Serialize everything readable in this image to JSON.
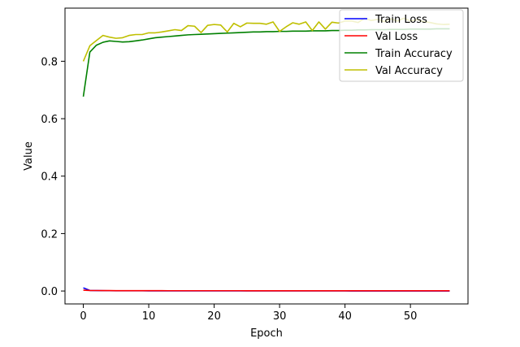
{
  "chart_data": {
    "type": "line",
    "xlabel": "Epoch",
    "ylabel": "Value",
    "xlim": [
      -2.8,
      58.8
    ],
    "ylim": [
      -0.045,
      0.985
    ],
    "xticks": [
      0,
      10,
      20,
      30,
      40,
      50
    ],
    "yticks": [
      0.0,
      0.2,
      0.4,
      0.6,
      0.8
    ],
    "ytick_labels": [
      "0.0",
      "0.2",
      "0.4",
      "0.6",
      "0.8"
    ],
    "grid": false,
    "legend_position": "top-right",
    "series": [
      {
        "name": "Train Loss",
        "color": "#0000ff",
        "x": [
          0,
          1,
          2,
          3,
          4,
          5,
          6,
          7,
          8,
          9,
          10,
          11,
          12,
          13,
          14,
          15,
          16,
          17,
          18,
          19,
          20,
          21,
          22,
          23,
          24,
          25,
          26,
          27,
          28,
          29,
          30,
          31,
          32,
          33,
          34,
          35,
          36,
          37,
          38,
          39,
          40,
          41,
          42,
          43,
          44,
          45,
          46,
          47,
          48,
          49,
          50,
          51,
          52,
          53,
          54,
          55,
          56
        ],
        "values": [
          0.011,
          0.002,
          0.0015,
          0.0012,
          0.001,
          0.0009,
          0.0008,
          0.0008,
          0.0007,
          0.0007,
          0.0006,
          0.0006,
          0.0006,
          0.0005,
          0.0005,
          0.0005,
          0.0005,
          0.0005,
          0.0004,
          0.0004,
          0.0004,
          0.0004,
          0.0004,
          0.0004,
          0.0004,
          0.0003,
          0.0003,
          0.0003,
          0.0003,
          0.0003,
          0.0003,
          0.0003,
          0.0003,
          0.0003,
          0.0003,
          0.0003,
          0.0003,
          0.0003,
          0.0003,
          0.0003,
          0.0003,
          0.0002,
          0.0002,
          0.0002,
          0.0002,
          0.0002,
          0.0002,
          0.0002,
          0.0002,
          0.0002,
          0.0002,
          0.0002,
          0.0002,
          0.0002,
          0.0002,
          0.0002,
          0.0002
        ]
      },
      {
        "name": "Val Loss",
        "color": "#ff0000",
        "x": [
          0,
          1,
          2,
          3,
          4,
          5,
          6,
          7,
          8,
          9,
          10,
          11,
          12,
          13,
          14,
          15,
          16,
          17,
          18,
          19,
          20,
          21,
          22,
          23,
          24,
          25,
          26,
          27,
          28,
          29,
          30,
          31,
          32,
          33,
          34,
          35,
          36,
          37,
          38,
          39,
          40,
          41,
          42,
          43,
          44,
          45,
          46,
          47,
          48,
          49,
          50,
          51,
          52,
          53,
          54,
          55,
          56
        ],
        "values": [
          0.003,
          0.002,
          0.0017,
          0.0015,
          0.0014,
          0.0013,
          0.0013,
          0.0012,
          0.0012,
          0.0011,
          0.0011,
          0.0011,
          0.0011,
          0.001,
          0.001,
          0.001,
          0.001,
          0.001,
          0.001,
          0.001,
          0.001,
          0.001,
          0.001,
          0.001,
          0.001,
          0.0009,
          0.0009,
          0.0009,
          0.0009,
          0.0009,
          0.0009,
          0.0009,
          0.0009,
          0.0009,
          0.0009,
          0.0009,
          0.0009,
          0.0009,
          0.0009,
          0.0009,
          0.0009,
          0.0009,
          0.0009,
          0.0009,
          0.0009,
          0.0009,
          0.0009,
          0.0009,
          0.0009,
          0.0009,
          0.0009,
          0.0009,
          0.0009,
          0.0009,
          0.0009,
          0.0009,
          0.0009
        ]
      },
      {
        "name": "Train Accuracy",
        "color": "#008000",
        "x": [
          0,
          1,
          2,
          3,
          4,
          5,
          6,
          7,
          8,
          9,
          10,
          11,
          12,
          13,
          14,
          15,
          16,
          17,
          18,
          19,
          20,
          21,
          22,
          23,
          24,
          25,
          26,
          27,
          28,
          29,
          30,
          31,
          32,
          33,
          34,
          35,
          36,
          37,
          38,
          39,
          40,
          41,
          42,
          43,
          44,
          45,
          46,
          47,
          48,
          49,
          50,
          51,
          52,
          53,
          54,
          55,
          56
        ],
        "values": [
          0.677,
          0.832,
          0.856,
          0.866,
          0.871,
          0.869,
          0.867,
          0.868,
          0.871,
          0.874,
          0.878,
          0.882,
          0.884,
          0.886,
          0.888,
          0.89,
          0.892,
          0.893,
          0.894,
          0.895,
          0.896,
          0.897,
          0.898,
          0.899,
          0.9,
          0.901,
          0.902,
          0.902,
          0.903,
          0.903,
          0.904,
          0.904,
          0.905,
          0.905,
          0.905,
          0.906,
          0.906,
          0.906,
          0.907,
          0.907,
          0.908,
          0.908,
          0.909,
          0.909,
          0.91,
          0.91,
          0.91,
          0.911,
          0.911,
          0.911,
          0.912,
          0.912,
          0.912,
          0.912,
          0.913,
          0.913,
          0.913
        ]
      },
      {
        "name": "Val Accuracy",
        "color": "#bfbf00",
        "x": [
          0,
          1,
          2,
          3,
          4,
          5,
          6,
          7,
          8,
          9,
          10,
          11,
          12,
          13,
          14,
          15,
          16,
          17,
          18,
          19,
          20,
          21,
          22,
          23,
          24,
          25,
          26,
          27,
          28,
          29,
          30,
          31,
          32,
          33,
          34,
          35,
          36,
          37,
          38,
          39,
          40,
          41,
          42,
          43,
          44,
          45,
          46,
          47,
          48,
          49,
          50,
          51,
          52,
          53,
          54,
          55,
          56
        ],
        "values": [
          0.8,
          0.854,
          0.872,
          0.89,
          0.884,
          0.88,
          0.882,
          0.89,
          0.893,
          0.893,
          0.899,
          0.899,
          0.902,
          0.906,
          0.91,
          0.907,
          0.924,
          0.922,
          0.9,
          0.925,
          0.928,
          0.926,
          0.902,
          0.932,
          0.92,
          0.933,
          0.932,
          0.932,
          0.929,
          0.937,
          0.904,
          0.92,
          0.934,
          0.929,
          0.937,
          0.907,
          0.937,
          0.912,
          0.936,
          0.933,
          0.94,
          0.94,
          0.935,
          0.95,
          0.942,
          0.946,
          0.938,
          0.948,
          0.94,
          0.95,
          0.94,
          0.945,
          0.938,
          0.935,
          0.93,
          0.928,
          0.929
        ]
      }
    ]
  }
}
